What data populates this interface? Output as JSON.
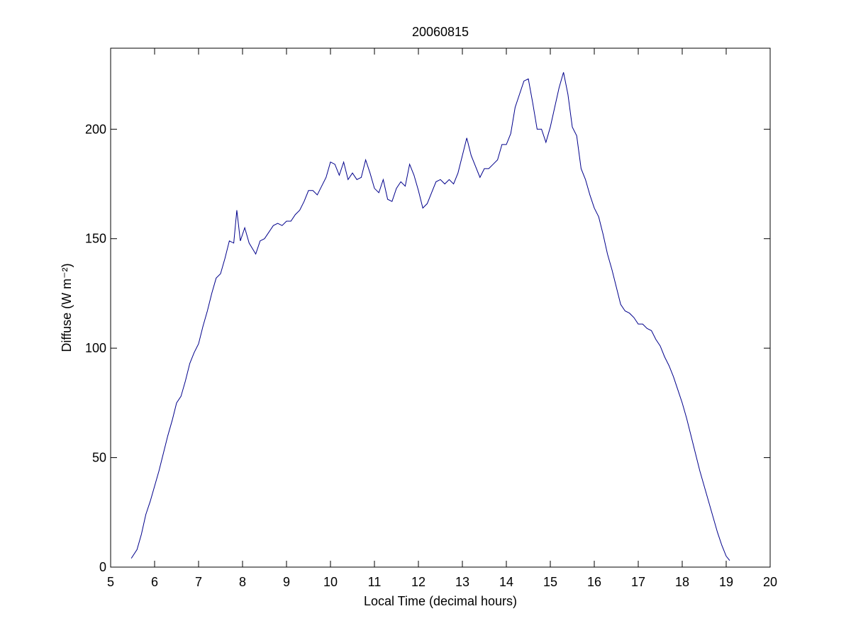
{
  "chart_data": {
    "type": "line",
    "title": "20060815",
    "x_label": "Local Time (decimal hours)",
    "y_label": "Diffuse (W m⁻²)",
    "xlim": [
      5,
      20
    ],
    "xticks": [
      5,
      6,
      7,
      8,
      9,
      10,
      11,
      12,
      13,
      14,
      15,
      16,
      17,
      18,
      19,
      20
    ],
    "ylim": [
      0,
      237
    ],
    "yticks": [
      0,
      50,
      100,
      150,
      200
    ],
    "series": [
      {
        "color": "#00008b",
        "x": [
          5.47,
          5.6,
          5.7,
          5.8,
          5.9,
          6.0,
          6.1,
          6.2,
          6.3,
          6.4,
          6.5,
          6.6,
          6.7,
          6.8,
          6.9,
          7.0,
          7.1,
          7.2,
          7.3,
          7.4,
          7.5,
          7.6,
          7.7,
          7.8,
          7.87,
          7.95,
          8.05,
          8.15,
          8.3,
          8.4,
          8.5,
          8.6,
          8.7,
          8.8,
          8.9,
          9.0,
          9.1,
          9.2,
          9.3,
          9.4,
          9.5,
          9.6,
          9.7,
          9.8,
          9.9,
          10.0,
          10.1,
          10.2,
          10.3,
          10.4,
          10.5,
          10.6,
          10.7,
          10.8,
          10.9,
          11.0,
          11.1,
          11.2,
          11.3,
          11.4,
          11.5,
          11.6,
          11.7,
          11.8,
          11.9,
          12.0,
          12.1,
          12.2,
          12.3,
          12.4,
          12.5,
          12.6,
          12.7,
          12.8,
          12.9,
          13.0,
          13.1,
          13.2,
          13.3,
          13.4,
          13.5,
          13.6,
          13.7,
          13.8,
          13.9,
          14.0,
          14.1,
          14.2,
          14.3,
          14.4,
          14.5,
          14.6,
          14.7,
          14.8,
          14.9,
          15.0,
          15.1,
          15.2,
          15.3,
          15.4,
          15.5,
          15.6,
          15.7,
          15.8,
          15.9,
          16.0,
          16.1,
          16.2,
          16.3,
          16.4,
          16.5,
          16.6,
          16.7,
          16.8,
          16.9,
          17.0,
          17.1,
          17.2,
          17.3,
          17.4,
          17.5,
          17.6,
          17.7,
          17.8,
          17.9,
          18.0,
          18.1,
          18.2,
          18.3,
          18.4,
          18.5,
          18.6,
          18.7,
          18.8,
          18.9,
          19.0,
          19.08
        ],
        "values": [
          4,
          8,
          15,
          24,
          30,
          37,
          44,
          52,
          60,
          67,
          75,
          78,
          85,
          93,
          98,
          102,
          110,
          117,
          125,
          132,
          134,
          141,
          149,
          148,
          163,
          149,
          155,
          148,
          143,
          149,
          150,
          153,
          156,
          157,
          156,
          158,
          158,
          161,
          163,
          167,
          172,
          172,
          170,
          174,
          178,
          185,
          184,
          179,
          185,
          177,
          180,
          177,
          178,
          186,
          180,
          173,
          171,
          177,
          168,
          167,
          173,
          176,
          174,
          184,
          179,
          172,
          164,
          166,
          171,
          176,
          177,
          175,
          177,
          175,
          180,
          188,
          196,
          188,
          183,
          178,
          182,
          182,
          184,
          186,
          193,
          193,
          198,
          210,
          216,
          222,
          223,
          212,
          200,
          200,
          194,
          201,
          210,
          219,
          226,
          216,
          201,
          197,
          182,
          177,
          170,
          164,
          160,
          152,
          143,
          136,
          128,
          120,
          117,
          116,
          114,
          111,
          111,
          109,
          108,
          104,
          101,
          96,
          92,
          87,
          81,
          75,
          68,
          60,
          52,
          44,
          37,
          30,
          23,
          16,
          10,
          5,
          3
        ]
      }
    ]
  }
}
